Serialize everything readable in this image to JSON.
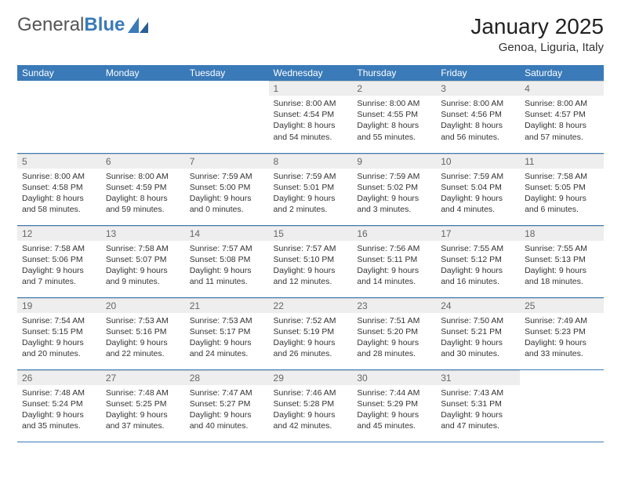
{
  "logo": {
    "word1": "General",
    "word2": "Blue"
  },
  "title": "January 2025",
  "location": "Genoa, Liguria, Italy",
  "colors": {
    "header_bg": "#3a7ab8",
    "header_text": "#ffffff",
    "daynum_bg": "#eeeeee",
    "daynum_text": "#666666",
    "body_text": "#333333",
    "rule": "#3a7ab8",
    "page_bg": "#ffffff"
  },
  "fonts": {
    "title_pt": 28,
    "location_pt": 15,
    "dayhdr_pt": 12,
    "body_pt": 10.5
  },
  "day_headers": [
    "Sunday",
    "Monday",
    "Tuesday",
    "Wednesday",
    "Thursday",
    "Friday",
    "Saturday"
  ],
  "weeks": [
    [
      {
        "empty": true
      },
      {
        "empty": true
      },
      {
        "empty": true
      },
      {
        "n": "1",
        "sr": "Sunrise: 8:00 AM",
        "ss": "Sunset: 4:54 PM",
        "d1": "Daylight: 8 hours",
        "d2": "and 54 minutes."
      },
      {
        "n": "2",
        "sr": "Sunrise: 8:00 AM",
        "ss": "Sunset: 4:55 PM",
        "d1": "Daylight: 8 hours",
        "d2": "and 55 minutes."
      },
      {
        "n": "3",
        "sr": "Sunrise: 8:00 AM",
        "ss": "Sunset: 4:56 PM",
        "d1": "Daylight: 8 hours",
        "d2": "and 56 minutes."
      },
      {
        "n": "4",
        "sr": "Sunrise: 8:00 AM",
        "ss": "Sunset: 4:57 PM",
        "d1": "Daylight: 8 hours",
        "d2": "and 57 minutes."
      }
    ],
    [
      {
        "n": "5",
        "sr": "Sunrise: 8:00 AM",
        "ss": "Sunset: 4:58 PM",
        "d1": "Daylight: 8 hours",
        "d2": "and 58 minutes."
      },
      {
        "n": "6",
        "sr": "Sunrise: 8:00 AM",
        "ss": "Sunset: 4:59 PM",
        "d1": "Daylight: 8 hours",
        "d2": "and 59 minutes."
      },
      {
        "n": "7",
        "sr": "Sunrise: 7:59 AM",
        "ss": "Sunset: 5:00 PM",
        "d1": "Daylight: 9 hours",
        "d2": "and 0 minutes."
      },
      {
        "n": "8",
        "sr": "Sunrise: 7:59 AM",
        "ss": "Sunset: 5:01 PM",
        "d1": "Daylight: 9 hours",
        "d2": "and 2 minutes."
      },
      {
        "n": "9",
        "sr": "Sunrise: 7:59 AM",
        "ss": "Sunset: 5:02 PM",
        "d1": "Daylight: 9 hours",
        "d2": "and 3 minutes."
      },
      {
        "n": "10",
        "sr": "Sunrise: 7:59 AM",
        "ss": "Sunset: 5:04 PM",
        "d1": "Daylight: 9 hours",
        "d2": "and 4 minutes."
      },
      {
        "n": "11",
        "sr": "Sunrise: 7:58 AM",
        "ss": "Sunset: 5:05 PM",
        "d1": "Daylight: 9 hours",
        "d2": "and 6 minutes."
      }
    ],
    [
      {
        "n": "12",
        "sr": "Sunrise: 7:58 AM",
        "ss": "Sunset: 5:06 PM",
        "d1": "Daylight: 9 hours",
        "d2": "and 7 minutes."
      },
      {
        "n": "13",
        "sr": "Sunrise: 7:58 AM",
        "ss": "Sunset: 5:07 PM",
        "d1": "Daylight: 9 hours",
        "d2": "and 9 minutes."
      },
      {
        "n": "14",
        "sr": "Sunrise: 7:57 AM",
        "ss": "Sunset: 5:08 PM",
        "d1": "Daylight: 9 hours",
        "d2": "and 11 minutes."
      },
      {
        "n": "15",
        "sr": "Sunrise: 7:57 AM",
        "ss": "Sunset: 5:10 PM",
        "d1": "Daylight: 9 hours",
        "d2": "and 12 minutes."
      },
      {
        "n": "16",
        "sr": "Sunrise: 7:56 AM",
        "ss": "Sunset: 5:11 PM",
        "d1": "Daylight: 9 hours",
        "d2": "and 14 minutes."
      },
      {
        "n": "17",
        "sr": "Sunrise: 7:55 AM",
        "ss": "Sunset: 5:12 PM",
        "d1": "Daylight: 9 hours",
        "d2": "and 16 minutes."
      },
      {
        "n": "18",
        "sr": "Sunrise: 7:55 AM",
        "ss": "Sunset: 5:13 PM",
        "d1": "Daylight: 9 hours",
        "d2": "and 18 minutes."
      }
    ],
    [
      {
        "n": "19",
        "sr": "Sunrise: 7:54 AM",
        "ss": "Sunset: 5:15 PM",
        "d1": "Daylight: 9 hours",
        "d2": "and 20 minutes."
      },
      {
        "n": "20",
        "sr": "Sunrise: 7:53 AM",
        "ss": "Sunset: 5:16 PM",
        "d1": "Daylight: 9 hours",
        "d2": "and 22 minutes."
      },
      {
        "n": "21",
        "sr": "Sunrise: 7:53 AM",
        "ss": "Sunset: 5:17 PM",
        "d1": "Daylight: 9 hours",
        "d2": "and 24 minutes."
      },
      {
        "n": "22",
        "sr": "Sunrise: 7:52 AM",
        "ss": "Sunset: 5:19 PM",
        "d1": "Daylight: 9 hours",
        "d2": "and 26 minutes."
      },
      {
        "n": "23",
        "sr": "Sunrise: 7:51 AM",
        "ss": "Sunset: 5:20 PM",
        "d1": "Daylight: 9 hours",
        "d2": "and 28 minutes."
      },
      {
        "n": "24",
        "sr": "Sunrise: 7:50 AM",
        "ss": "Sunset: 5:21 PM",
        "d1": "Daylight: 9 hours",
        "d2": "and 30 minutes."
      },
      {
        "n": "25",
        "sr": "Sunrise: 7:49 AM",
        "ss": "Sunset: 5:23 PM",
        "d1": "Daylight: 9 hours",
        "d2": "and 33 minutes."
      }
    ],
    [
      {
        "n": "26",
        "sr": "Sunrise: 7:48 AM",
        "ss": "Sunset: 5:24 PM",
        "d1": "Daylight: 9 hours",
        "d2": "and 35 minutes."
      },
      {
        "n": "27",
        "sr": "Sunrise: 7:48 AM",
        "ss": "Sunset: 5:25 PM",
        "d1": "Daylight: 9 hours",
        "d2": "and 37 minutes."
      },
      {
        "n": "28",
        "sr": "Sunrise: 7:47 AM",
        "ss": "Sunset: 5:27 PM",
        "d1": "Daylight: 9 hours",
        "d2": "and 40 minutes."
      },
      {
        "n": "29",
        "sr": "Sunrise: 7:46 AM",
        "ss": "Sunset: 5:28 PM",
        "d1": "Daylight: 9 hours",
        "d2": "and 42 minutes."
      },
      {
        "n": "30",
        "sr": "Sunrise: 7:44 AM",
        "ss": "Sunset: 5:29 PM",
        "d1": "Daylight: 9 hours",
        "d2": "and 45 minutes."
      },
      {
        "n": "31",
        "sr": "Sunrise: 7:43 AM",
        "ss": "Sunset: 5:31 PM",
        "d1": "Daylight: 9 hours",
        "d2": "and 47 minutes."
      },
      {
        "empty": true
      }
    ]
  ]
}
